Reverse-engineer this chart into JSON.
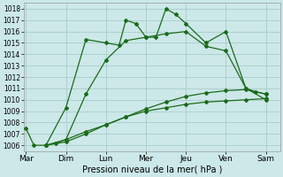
{
  "title": "",
  "xlabel": "Pression niveau de la mer( hPa )",
  "background_color": "#cce8e8",
  "grid_color": "#aacccc",
  "line_color": "#1a6b1a",
  "days": [
    "Mar",
    "Dim",
    "Lun",
    "Mer",
    "Jeu",
    "Ven",
    "Sam"
  ],
  "day_positions": [
    0,
    1,
    2,
    3,
    4,
    5,
    6
  ],
  "xlim": [
    -0.05,
    6.35
  ],
  "ylim": [
    1005.5,
    1018.5
  ],
  "yticks": [
    1006,
    1007,
    1008,
    1009,
    1010,
    1011,
    1012,
    1013,
    1014,
    1015,
    1016,
    1017,
    1018
  ],
  "series_x": [
    [
      0,
      0.2,
      0.5,
      1.0,
      1.5,
      2.0,
      2.33,
      2.5,
      2.75,
      3.0,
      3.25,
      3.5,
      3.75,
      4.0,
      4.5,
      5.0,
      5.5,
      5.75,
      6.0
    ],
    [
      0.5,
      0.75,
      1.0,
      1.5,
      2.0,
      2.5,
      3.0,
      3.5,
      4.0,
      4.5,
      5.0,
      5.5,
      6.0
    ],
    [
      0.5,
      1.0,
      1.5,
      2.0,
      2.5,
      3.0,
      3.5,
      4.0,
      4.5,
      5.0,
      5.5,
      6.0
    ],
    [
      0.5,
      1.0,
      1.5,
      2.0,
      2.5,
      3.0,
      3.5,
      4.0,
      4.5,
      5.0,
      5.5,
      6.0
    ]
  ],
  "series_y": [
    [
      1007.5,
      1006.0,
      1006.0,
      1009.3,
      1015.3,
      1015.0,
      1014.8,
      1017.0,
      1016.7,
      1015.5,
      1015.5,
      1018.0,
      1017.5,
      1016.7,
      1015.0,
      1016.0,
      1011.0,
      1010.7,
      1010.5
    ],
    [
      1006.0,
      1006.2,
      1006.5,
      1010.5,
      1013.5,
      1015.2,
      1015.5,
      1015.8,
      1016.0,
      1014.7,
      1014.3,
      1011.0,
      1010.0
    ],
    [
      1006.0,
      1006.5,
      1007.2,
      1007.8,
      1008.5,
      1009.2,
      1009.8,
      1010.3,
      1010.6,
      1010.8,
      1010.9,
      1010.5
    ],
    [
      1006.0,
      1006.3,
      1007.0,
      1007.8,
      1008.5,
      1009.0,
      1009.3,
      1009.6,
      1009.8,
      1009.9,
      1010.0,
      1010.1
    ]
  ]
}
